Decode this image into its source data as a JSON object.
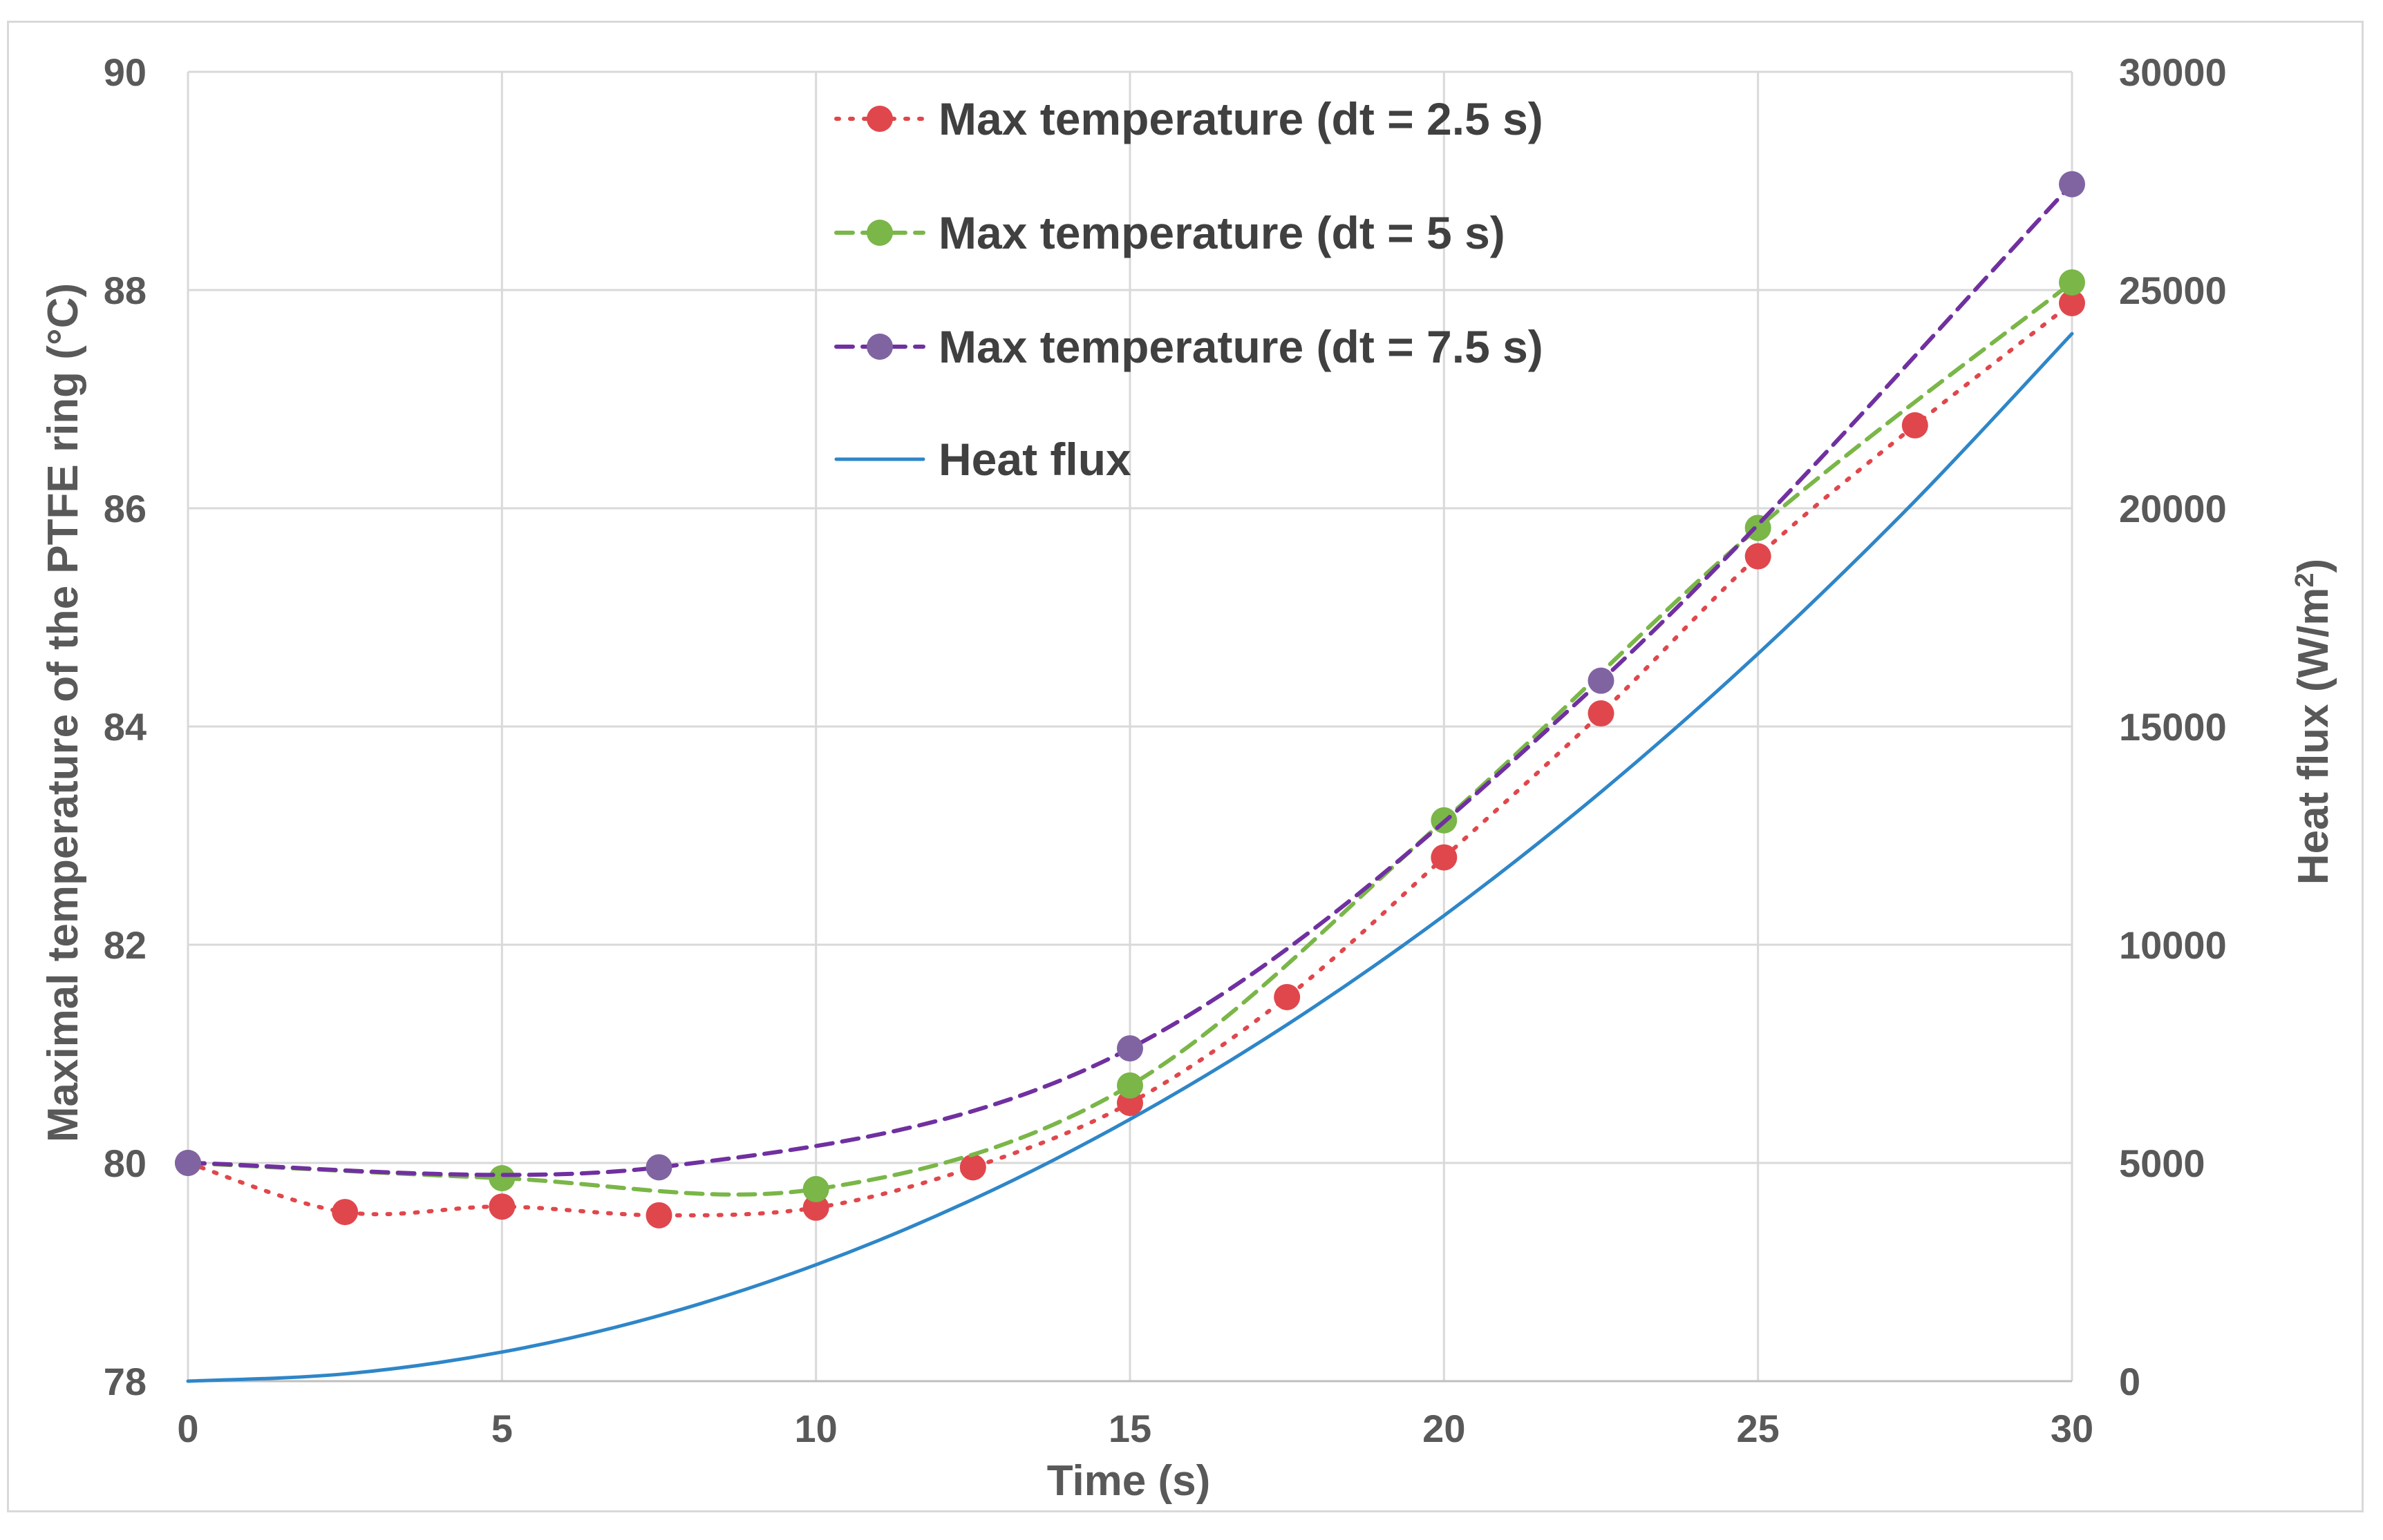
{
  "chart_data": {
    "type": "line",
    "xlabel": "Time (s)",
    "ylabel_left": "Maximal temperature of the PTFE ring (°C)",
    "ylabel_right": "Heat flux (W/m²)",
    "ylabel_right_base": "Heat flux (W/m",
    "ylabel_right_sup": "2",
    "ylabel_right_end": ")",
    "xlim": [
      0,
      30
    ],
    "ylim_left": [
      78,
      90
    ],
    "ylim_right": [
      0,
      30000
    ],
    "x_ticks": [
      0,
      5,
      10,
      15,
      20,
      25,
      30
    ],
    "x_tick_labels": [
      "0",
      "5",
      "10",
      "15",
      "20",
      "25",
      "30"
    ],
    "y_left_ticks": [
      78,
      80,
      82,
      84,
      86,
      88,
      90
    ],
    "y_left_tick_labels": [
      "78",
      "80",
      "82",
      "84",
      "86",
      "88",
      "90"
    ],
    "y_right_ticks": [
      0,
      5000,
      10000,
      15000,
      20000,
      25000,
      30000
    ],
    "y_right_tick_labels": [
      "0",
      "5000",
      "10000",
      "15000",
      "20000",
      "25000",
      "30000"
    ],
    "grid": true,
    "legend_position": "top-center",
    "series": [
      {
        "name": "Max temperature (dt = 2.5 s)",
        "axis": "left",
        "color": "#e0474c",
        "line_style": "dotted",
        "markers": true,
        "x": [
          0,
          2.5,
          5,
          7.5,
          10,
          12.5,
          15,
          17.5,
          20,
          22.5,
          25,
          27.5,
          30
        ],
        "y": [
          80.0,
          79.55,
          79.6,
          79.52,
          79.59,
          79.96,
          80.55,
          81.52,
          82.8,
          84.12,
          85.56,
          86.76,
          87.88
        ]
      },
      {
        "name": "Max temperature (dt = 5 s)",
        "axis": "left",
        "color": "#7ab648",
        "line_style": "dashed",
        "markers": true,
        "x": [
          0,
          5,
          10,
          15,
          20,
          25,
          30
        ],
        "y": [
          80.0,
          79.86,
          79.76,
          80.71,
          83.14,
          85.82,
          88.07
        ]
      },
      {
        "name": "Max temperature (dt = 7.5 s)",
        "axis": "left",
        "color": "#7030a0",
        "marker_color": "#8064a2",
        "line_style": "dashed",
        "markers": true,
        "x": [
          0,
          7.5,
          15,
          22.5,
          30
        ],
        "y": [
          80.0,
          79.96,
          81.05,
          84.42,
          88.97
        ]
      },
      {
        "name": "Heat flux",
        "axis": "right",
        "color": "#2e86c8",
        "line_style": "solid",
        "markers": false,
        "x": [
          0,
          2.5,
          5,
          7.5,
          10,
          12.5,
          15,
          17.5,
          20,
          22.5,
          25,
          27.5,
          30
        ],
        "y": [
          0,
          167,
          667,
          1500,
          2667,
          4167,
          6000,
          8167,
          10667,
          13500,
          16667,
          20167,
          24000
        ]
      }
    ]
  }
}
